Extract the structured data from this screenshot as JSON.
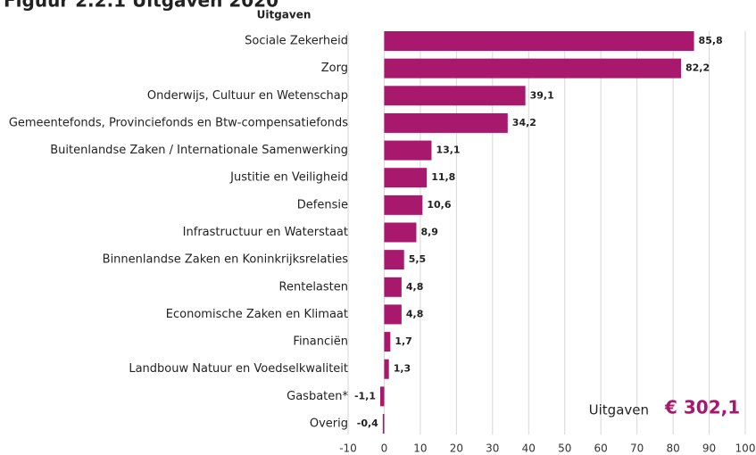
{
  "chart_data": {
    "type": "barh",
    "title": "Figuur 2.2.1 Uitgaven 2020",
    "ylabel": "Uitgaven",
    "categories": [
      "Sociale Zekerheid",
      "Zorg",
      "Onderwijs, Cultuur en Wetenschap",
      "Gemeentefonds, Provinciefonds en Btw-compensatiefonds",
      "Buitenlandse Zaken / Internationale Samenwerking",
      "Justitie en Veiligheid",
      "Defensie",
      "Infrastructuur en Waterstaat",
      "Binnenlandse Zaken en Koninkrijksrelaties",
      "Rentelasten",
      "Economische Zaken en Klimaat",
      "Financiën",
      "Landbouw Natuur en Voedselkwaliteit",
      "Gasbaten*",
      "Overig"
    ],
    "values": [
      85.8,
      82.2,
      39.1,
      34.2,
      13.1,
      11.8,
      10.6,
      8.9,
      5.5,
      4.8,
      4.8,
      1.7,
      1.3,
      -1.1,
      -0.4
    ],
    "value_labels": [
      "85,8",
      "82,2",
      "39,1",
      "34,2",
      "13,1",
      "11,8",
      "10,6",
      "8,9",
      "5,5",
      "4,8",
      "4,8",
      "1,7",
      "1,3",
      "-1,1",
      "-0,4"
    ],
    "color": "#a8186c",
    "xlim": [
      -10,
      100
    ],
    "xticks": [
      -10,
      0,
      10,
      20,
      30,
      40,
      50,
      60,
      70,
      80,
      90,
      100
    ],
    "grid": true,
    "annotation": {
      "label": "Uitgaven",
      "value": "€ 302,1"
    }
  }
}
